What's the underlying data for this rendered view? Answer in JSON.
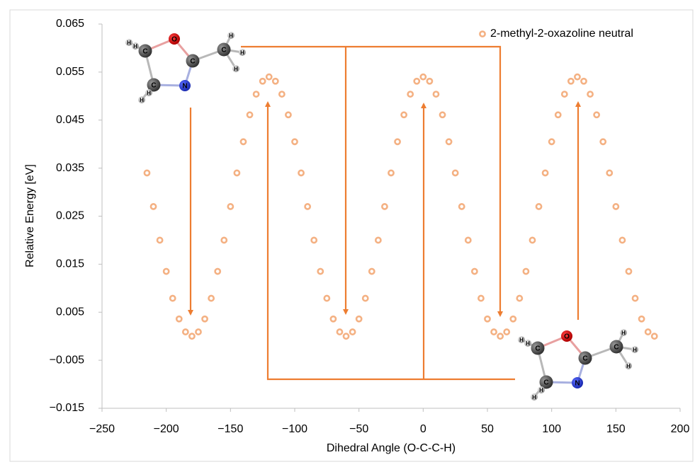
{
  "chart_data": {
    "type": "scatter",
    "x_label": "Dihedral Angle (O-C-C-H)",
    "y_label": "Relative Energy [eV]",
    "xlim": [
      -250,
      200
    ],
    "xticks": [
      {
        "value": -250,
        "label": "−250"
      },
      {
        "value": -200,
        "label": "−200"
      },
      {
        "value": -150,
        "label": "−150"
      },
      {
        "value": -100,
        "label": "−100"
      },
      {
        "value": -50,
        "label": "−50"
      },
      0,
      50,
      100,
      150,
      200
    ],
    "ylim": [
      -0.015,
      0.065
    ],
    "yticks": [
      {
        "value": -0.015,
        "label": "−0.015"
      },
      {
        "value": -0.005,
        "label": "−0.005"
      },
      0.005,
      0.015,
      0.025,
      0.035,
      0.045,
      0.055,
      0.065
    ],
    "grid": false,
    "legend": "top-right",
    "series": [
      {
        "name": "2-methyl-2-oxazoline neutral",
        "color": "#f4b183",
        "x": [
          -215,
          -210,
          -205,
          -200,
          -195,
          -190,
          -185,
          -180,
          -175,
          -170,
          -165,
          -160,
          -155,
          -150,
          -145,
          -140,
          -135,
          -130,
          -125,
          -120,
          -115,
          -110,
          -105,
          -100,
          -95,
          -90,
          -85,
          -80,
          -75,
          -70,
          -65,
          -60,
          -55,
          -50,
          -45,
          -40,
          -35,
          -30,
          -25,
          -20,
          -15,
          -10,
          -5,
          0,
          5,
          10,
          15,
          20,
          25,
          30,
          35,
          40,
          45,
          50,
          55,
          60,
          65,
          70,
          75,
          80,
          85,
          90,
          95,
          100,
          105,
          110,
          115,
          120,
          125,
          130,
          135,
          140,
          145,
          150,
          155,
          160,
          165,
          170,
          175,
          180
        ],
        "values": [
          0.034,
          0.027,
          0.02,
          0.0135,
          0.0079,
          0.0036,
          0.0009,
          0,
          0.0009,
          0.0036,
          0.0079,
          0.0135,
          0.02,
          0.027,
          0.034,
          0.0405,
          0.0461,
          0.0504,
          0.0531,
          0.054,
          0.0531,
          0.0504,
          0.0461,
          0.0405,
          0.034,
          0.027,
          0.02,
          0.0135,
          0.0079,
          0.0036,
          0.0009,
          0,
          0.0009,
          0.0036,
          0.0079,
          0.0135,
          0.02,
          0.027,
          0.034,
          0.0405,
          0.0461,
          0.0504,
          0.0531,
          0.054,
          0.0531,
          0.0504,
          0.0461,
          0.0405,
          0.034,
          0.027,
          0.02,
          0.0135,
          0.0079,
          0.0036,
          0.0009,
          0,
          0.0009,
          0.0036,
          0.0079,
          0.0135,
          0.02,
          0.027,
          0.034,
          0.0405,
          0.0461,
          0.0504,
          0.0531,
          0.054,
          0.0531,
          0.0504,
          0.0461,
          0.0405,
          0.034,
          0.027,
          0.02,
          0.0135,
          0.0079,
          0.0036,
          0.0009,
          0
        ]
      }
    ],
    "molecules": [
      {
        "atoms": [
          "O",
          "C",
          "C",
          "C",
          "N",
          "C",
          "H",
          "H",
          "H",
          "H",
          "H",
          "H",
          "H"
        ]
      },
      {
        "atoms": [
          "O",
          "C",
          "C",
          "C",
          "N",
          "C",
          "H",
          "H",
          "H",
          "H",
          "H",
          "H",
          "H"
        ]
      }
    ]
  }
}
